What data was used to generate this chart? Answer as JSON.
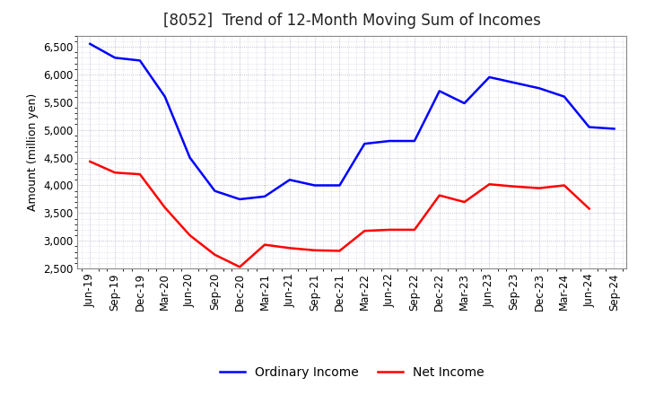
{
  "title": "[8052]  Trend of 12-Month Moving Sum of Incomes",
  "ylabel": "Amount (million yen)",
  "x_labels": [
    "Jun-19",
    "Sep-19",
    "Dec-19",
    "Mar-20",
    "Jun-20",
    "Sep-20",
    "Dec-20",
    "Mar-21",
    "Jun-21",
    "Sep-21",
    "Dec-21",
    "Mar-22",
    "Jun-22",
    "Sep-22",
    "Dec-22",
    "Mar-23",
    "Jun-23",
    "Sep-23",
    "Dec-23",
    "Mar-24",
    "Jun-24",
    "Sep-24"
  ],
  "ordinary_income": [
    6550,
    6300,
    6250,
    5600,
    4500,
    3900,
    3750,
    3800,
    4100,
    4000,
    4000,
    4750,
    4800,
    4800,
    5700,
    5480,
    5950,
    5850,
    5750,
    5600,
    5050,
    5020
  ],
  "net_income": [
    4430,
    4230,
    4200,
    3600,
    3100,
    2750,
    2530,
    2930,
    2870,
    2830,
    2820,
    3180,
    3200,
    3200,
    3820,
    3700,
    4020,
    3980,
    3950,
    4000,
    3580,
    null
  ],
  "ordinary_color": "#0000FF",
  "net_color": "#FF0000",
  "ylim": [
    2500,
    6700
  ],
  "yticks": [
    2500,
    3000,
    3500,
    4000,
    4500,
    5000,
    5500,
    6000,
    6500
  ],
  "background_color": "#FFFFFF",
  "grid_color": "#AAAACC",
  "title_fontsize": 12,
  "ylabel_fontsize": 9,
  "tick_fontsize": 8.5,
  "legend_fontsize": 10
}
